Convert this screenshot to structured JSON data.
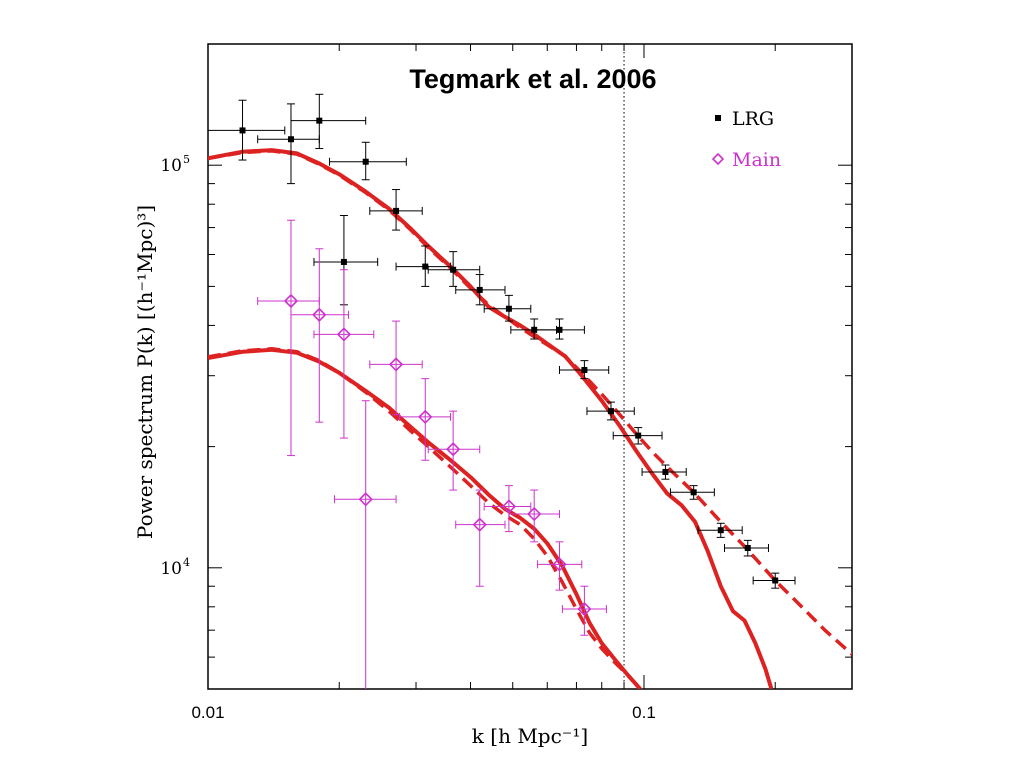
{
  "chart_data": {
    "type": "scatter",
    "title": "Tegmark et al. 2006",
    "xlabel": "k [h Mpc⁻¹]",
    "ylabel": "Power spectrum P(k) [(h⁻¹Mpc)³]",
    "xscale": "log",
    "yscale": "log",
    "xlim": [
      0.01,
      0.3
    ],
    "ylim": [
      5000,
      200000
    ],
    "x_tick_labels": [
      {
        "value": 0.01,
        "label": "0.01"
      },
      {
        "value": 0.1,
        "label": "0.1"
      }
    ],
    "y_tick_labels": [
      {
        "value": 10000,
        "base": "10",
        "exp": "4"
      },
      {
        "value": 100000,
        "base": "10",
        "exp": "5"
      }
    ],
    "vline": 0.09,
    "legend_position": "top-right",
    "grid": false,
    "series": [
      {
        "name": "LRG",
        "marker": "square",
        "color": "#000000",
        "points": [
          {
            "x": 0.012,
            "y": 122000,
            "xlo": 0.01,
            "xhi": 0.015,
            "ylo": 103000,
            "yhi": 145000
          },
          {
            "x": 0.0155,
            "y": 116000,
            "xlo": 0.013,
            "xhi": 0.018,
            "ylo": 90000,
            "yhi": 142000
          },
          {
            "x": 0.018,
            "y": 129000,
            "xlo": 0.0155,
            "xhi": 0.023,
            "ylo": 110000,
            "yhi": 150000
          },
          {
            "x": 0.0205,
            "y": 57500,
            "xlo": 0.0175,
            "xhi": 0.0245,
            "ylo": 45000,
            "yhi": 75000
          },
          {
            "x": 0.023,
            "y": 102000,
            "xlo": 0.019,
            "xhi": 0.0285,
            "ylo": 92000,
            "yhi": 114000
          },
          {
            "x": 0.027,
            "y": 77000,
            "xlo": 0.0235,
            "xhi": 0.031,
            "ylo": 69000,
            "yhi": 87000
          },
          {
            "x": 0.0315,
            "y": 56000,
            "xlo": 0.027,
            "xhi": 0.036,
            "ylo": 50000,
            "yhi": 63000
          },
          {
            "x": 0.0365,
            "y": 55000,
            "xlo": 0.032,
            "xhi": 0.042,
            "ylo": 50000,
            "yhi": 61000
          },
          {
            "x": 0.042,
            "y": 49000,
            "xlo": 0.037,
            "xhi": 0.048,
            "ylo": 45000,
            "yhi": 53500
          },
          {
            "x": 0.049,
            "y": 44000,
            "xlo": 0.043,
            "xhi": 0.055,
            "ylo": 41000,
            "yhi": 47500
          },
          {
            "x": 0.056,
            "y": 39000,
            "xlo": 0.0495,
            "xhi": 0.063,
            "ylo": 37000,
            "yhi": 41500
          },
          {
            "x": 0.064,
            "y": 39000,
            "xlo": 0.056,
            "xhi": 0.073,
            "ylo": 37000,
            "yhi": 41500
          },
          {
            "x": 0.073,
            "y": 31000,
            "xlo": 0.064,
            "xhi": 0.083,
            "ylo": 29500,
            "yhi": 32700
          },
          {
            "x": 0.084,
            "y": 24500,
            "xlo": 0.074,
            "xhi": 0.095,
            "ylo": 23300,
            "yhi": 25800
          },
          {
            "x": 0.097,
            "y": 21300,
            "xlo": 0.085,
            "xhi": 0.11,
            "ylo": 20300,
            "yhi": 22300
          },
          {
            "x": 0.112,
            "y": 17300,
            "xlo": 0.099,
            "xhi": 0.125,
            "ylo": 16600,
            "yhi": 18000
          },
          {
            "x": 0.13,
            "y": 15400,
            "xlo": 0.115,
            "xhi": 0.145,
            "ylo": 14800,
            "yhi": 16000
          },
          {
            "x": 0.15,
            "y": 12400,
            "xlo": 0.133,
            "xhi": 0.168,
            "ylo": 11900,
            "yhi": 12900
          },
          {
            "x": 0.173,
            "y": 11200,
            "xlo": 0.153,
            "xhi": 0.193,
            "ylo": 10700,
            "yhi": 11700
          },
          {
            "x": 0.2,
            "y": 9300,
            "xlo": 0.178,
            "xhi": 0.222,
            "ylo": 8900,
            "yhi": 9700
          }
        ]
      },
      {
        "name": "Main",
        "marker": "diamond",
        "color": "#cc33cc",
        "points": [
          {
            "x": 0.0155,
            "y": 46000,
            "xlo": 0.013,
            "xhi": 0.018,
            "ylo": 19000,
            "yhi": 73000
          },
          {
            "x": 0.018,
            "y": 42500,
            "xlo": 0.0155,
            "xhi": 0.021,
            "ylo": 23000,
            "yhi": 62000
          },
          {
            "x": 0.0205,
            "y": 38000,
            "xlo": 0.0175,
            "xhi": 0.024,
            "ylo": 21000,
            "yhi": 55000
          },
          {
            "x": 0.023,
            "y": 14800,
            "xlo": 0.0195,
            "xhi": 0.027,
            "ylo": 4000,
            "yhi": 26000
          },
          {
            "x": 0.027,
            "y": 32000,
            "xlo": 0.0235,
            "xhi": 0.031,
            "ylo": 24000,
            "yhi": 41000
          },
          {
            "x": 0.0315,
            "y": 23700,
            "xlo": 0.0275,
            "xhi": 0.036,
            "ylo": 18500,
            "yhi": 29500
          },
          {
            "x": 0.0365,
            "y": 19700,
            "xlo": 0.032,
            "xhi": 0.042,
            "ylo": 15600,
            "yhi": 24500
          },
          {
            "x": 0.042,
            "y": 12800,
            "xlo": 0.037,
            "xhi": 0.048,
            "ylo": 9000,
            "yhi": 15600
          },
          {
            "x": 0.049,
            "y": 14200,
            "xlo": 0.043,
            "xhi": 0.055,
            "ylo": 12300,
            "yhi": 16000
          },
          {
            "x": 0.056,
            "y": 13600,
            "xlo": 0.049,
            "xhi": 0.064,
            "ylo": 11600,
            "yhi": 15600
          },
          {
            "x": 0.064,
            "y": 10200,
            "xlo": 0.057,
            "xhi": 0.072,
            "ylo": 8800,
            "yhi": 11600
          },
          {
            "x": 0.073,
            "y": 7900,
            "xlo": 0.065,
            "xhi": 0.082,
            "ylo": 6800,
            "yhi": 9000
          }
        ]
      }
    ],
    "curves": [
      {
        "group": "LRG",
        "style": "solid",
        "color": "#dd2222",
        "points": [
          [
            0.01,
            104000
          ],
          [
            0.012,
            108000
          ],
          [
            0.014,
            109000
          ],
          [
            0.016,
            107000
          ],
          [
            0.018,
            101000
          ],
          [
            0.02,
            95000
          ],
          [
            0.023,
            86000
          ],
          [
            0.026,
            78000
          ],
          [
            0.029,
            70000
          ],
          [
            0.032,
            63000
          ],
          [
            0.036,
            56000
          ],
          [
            0.04,
            50000
          ],
          [
            0.044,
            44500
          ],
          [
            0.048,
            42000
          ],
          [
            0.052,
            40000
          ],
          [
            0.056,
            38000
          ],
          [
            0.06,
            36000
          ],
          [
            0.066,
            33500
          ],
          [
            0.072,
            30000
          ],
          [
            0.08,
            26000
          ],
          [
            0.088,
            22500
          ],
          [
            0.096,
            19500
          ],
          [
            0.105,
            17000
          ],
          [
            0.113,
            15300
          ],
          [
            0.122,
            14300
          ],
          [
            0.131,
            13000
          ],
          [
            0.14,
            11000
          ],
          [
            0.15,
            9000
          ],
          [
            0.16,
            7800
          ],
          [
            0.17,
            7400
          ],
          [
            0.18,
            6500
          ],
          [
            0.19,
            5600
          ],
          [
            0.196,
            5000
          ]
        ]
      },
      {
        "group": "LRG",
        "style": "dashed",
        "color": "#dd2222",
        "points": [
          [
            0.01,
            104000
          ],
          [
            0.012,
            107500
          ],
          [
            0.014,
            108500
          ],
          [
            0.016,
            106500
          ],
          [
            0.018,
            100500
          ],
          [
            0.02,
            94500
          ],
          [
            0.023,
            85500
          ],
          [
            0.026,
            77500
          ],
          [
            0.029,
            69500
          ],
          [
            0.032,
            62500
          ],
          [
            0.036,
            55500
          ],
          [
            0.04,
            49500
          ],
          [
            0.044,
            45000
          ],
          [
            0.048,
            42000
          ],
          [
            0.052,
            39500
          ],
          [
            0.056,
            37500
          ],
          [
            0.06,
            35800
          ],
          [
            0.066,
            33500
          ],
          [
            0.072,
            30500
          ],
          [
            0.08,
            27000
          ],
          [
            0.088,
            24000
          ],
          [
            0.096,
            21500
          ],
          [
            0.105,
            19300
          ],
          [
            0.115,
            17500
          ],
          [
            0.13,
            15400
          ],
          [
            0.15,
            13000
          ],
          [
            0.17,
            11300
          ],
          [
            0.2,
            9300
          ],
          [
            0.23,
            8000
          ],
          [
            0.26,
            7000
          ],
          [
            0.3,
            6100
          ]
        ]
      },
      {
        "group": "Main",
        "style": "solid",
        "color": "#dd2222",
        "points": [
          [
            0.01,
            33200
          ],
          [
            0.012,
            34400
          ],
          [
            0.014,
            34800
          ],
          [
            0.016,
            34200
          ],
          [
            0.018,
            32500
          ],
          [
            0.02,
            30500
          ],
          [
            0.023,
            27500
          ],
          [
            0.026,
            25000
          ],
          [
            0.029,
            22500
          ],
          [
            0.032,
            20500
          ],
          [
            0.036,
            18500
          ],
          [
            0.04,
            16800
          ],
          [
            0.044,
            15200
          ],
          [
            0.048,
            14000
          ],
          [
            0.052,
            13300
          ],
          [
            0.056,
            12500
          ],
          [
            0.06,
            11500
          ],
          [
            0.065,
            10100
          ],
          [
            0.07,
            8600
          ],
          [
            0.075,
            7300
          ],
          [
            0.08,
            6500
          ],
          [
            0.086,
            5900
          ],
          [
            0.092,
            5400
          ],
          [
            0.098,
            5000
          ]
        ]
      },
      {
        "group": "Main",
        "style": "dashed",
        "color": "#dd2222",
        "points": [
          [
            0.01,
            33400
          ],
          [
            0.012,
            34600
          ],
          [
            0.014,
            35000
          ],
          [
            0.016,
            34400
          ],
          [
            0.018,
            32700
          ],
          [
            0.02,
            30500
          ],
          [
            0.023,
            27300
          ],
          [
            0.026,
            24500
          ],
          [
            0.029,
            22000
          ],
          [
            0.032,
            20000
          ],
          [
            0.036,
            17800
          ],
          [
            0.04,
            16000
          ],
          [
            0.044,
            14500
          ],
          [
            0.048,
            13500
          ],
          [
            0.052,
            12800
          ],
          [
            0.056,
            11800
          ],
          [
            0.06,
            10700
          ],
          [
            0.065,
            9200
          ],
          [
            0.07,
            7900
          ],
          [
            0.075,
            6900
          ],
          [
            0.08,
            6300
          ],
          [
            0.086,
            5800
          ],
          [
            0.092,
            5400
          ],
          [
            0.1,
            4900
          ]
        ]
      }
    ]
  }
}
